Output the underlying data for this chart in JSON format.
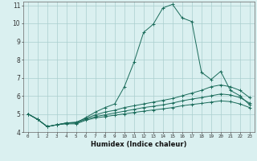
{
  "title": "",
  "xlabel": "Humidex (Indice chaleur)",
  "xlim": [
    -0.5,
    23.5
  ],
  "ylim": [
    4,
    11.2
  ],
  "yticks": [
    4,
    5,
    6,
    7,
    8,
    9,
    10,
    11
  ],
  "xticks": [
    0,
    1,
    2,
    3,
    4,
    5,
    6,
    7,
    8,
    9,
    10,
    11,
    12,
    13,
    14,
    15,
    16,
    17,
    18,
    19,
    20,
    21,
    22,
    23
  ],
  "bg_color": "#daf0f0",
  "grid_color": "#aacece",
  "line_color": "#1a6b5a",
  "lines": [
    {
      "x": [
        0,
        1,
        2,
        3,
        4,
        5,
        6,
        7,
        8,
        9,
        10,
        11,
        12,
        13,
        14,
        15,
        16,
        17,
        18,
        19,
        20,
        21,
        22,
        23
      ],
      "y": [
        5.0,
        4.7,
        4.3,
        4.4,
        4.5,
        4.5,
        4.8,
        5.1,
        5.35,
        5.55,
        6.5,
        7.85,
        9.5,
        9.95,
        10.85,
        11.05,
        10.3,
        10.1,
        7.3,
        6.9,
        7.35,
        6.3,
        6.0,
        5.5
      ]
    },
    {
      "x": [
        0,
        1,
        2,
        3,
        4,
        5,
        6,
        7,
        8,
        9,
        10,
        11,
        12,
        13,
        14,
        15,
        16,
        17,
        18,
        19,
        20,
        21,
        22,
        23
      ],
      "y": [
        5.0,
        4.7,
        4.3,
        4.4,
        4.5,
        4.55,
        4.75,
        4.95,
        5.1,
        5.2,
        5.35,
        5.45,
        5.55,
        5.65,
        5.75,
        5.85,
        6.0,
        6.15,
        6.3,
        6.5,
        6.6,
        6.5,
        6.3,
        5.9
      ]
    },
    {
      "x": [
        0,
        1,
        2,
        3,
        4,
        5,
        6,
        7,
        8,
        9,
        10,
        11,
        12,
        13,
        14,
        15,
        16,
        17,
        18,
        19,
        20,
        21,
        22,
        23
      ],
      "y": [
        5.0,
        4.7,
        4.3,
        4.4,
        4.5,
        4.5,
        4.7,
        4.85,
        4.95,
        5.05,
        5.15,
        5.25,
        5.35,
        5.42,
        5.5,
        5.6,
        5.72,
        5.82,
        5.9,
        6.0,
        6.1,
        6.05,
        5.9,
        5.6
      ]
    },
    {
      "x": [
        0,
        1,
        2,
        3,
        4,
        5,
        6,
        7,
        8,
        9,
        10,
        11,
        12,
        13,
        14,
        15,
        16,
        17,
        18,
        19,
        20,
        21,
        22,
        23
      ],
      "y": [
        5.0,
        4.7,
        4.3,
        4.4,
        4.45,
        4.45,
        4.65,
        4.78,
        4.85,
        4.93,
        5.0,
        5.08,
        5.15,
        5.22,
        5.28,
        5.35,
        5.45,
        5.52,
        5.58,
        5.65,
        5.72,
        5.68,
        5.55,
        5.35
      ]
    }
  ]
}
